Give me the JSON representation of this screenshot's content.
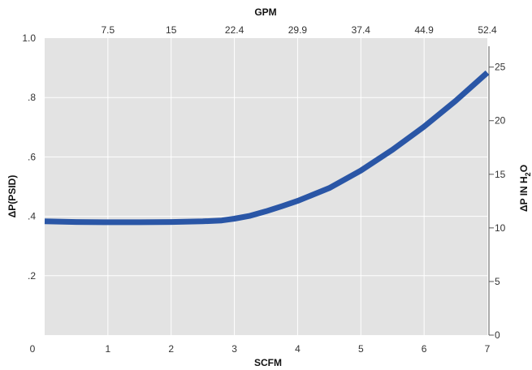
{
  "chart_data": {
    "type": "line",
    "x_axis": {
      "label": "SCFM",
      "range": [
        0,
        7
      ],
      "ticks": [
        "0",
        "1",
        "2",
        "3",
        "4",
        "5",
        "6",
        "7"
      ]
    },
    "top_axis": {
      "label": "GPM",
      "ticks": [
        "7.5",
        "15",
        "22.4",
        "29.9",
        "37.4",
        "44.9",
        "52.4"
      ]
    },
    "y_axis_left": {
      "label": "ΔP(PSID)",
      "range": [
        0,
        1.0
      ],
      "ticks": [
        "",
        ".2",
        ".4",
        ".6",
        ".8",
        "1.0"
      ]
    },
    "y_axis_right": {
      "label_main": "ΔP IN H",
      "label_sub": "2",
      "label_end": "O",
      "range": [
        0,
        27.7
      ],
      "ticks": [
        "0",
        "5",
        "10",
        "15",
        "20",
        "25"
      ]
    },
    "grid": true,
    "series": [
      {
        "color": "#2a56a6",
        "x": [
          0,
          0.5,
          1,
          1.5,
          2,
          2.5,
          2.8,
          3,
          3.25,
          3.5,
          3.75,
          4,
          4.5,
          5,
          5.5,
          6,
          6.5,
          7
        ],
        "y": [
          0.383,
          0.381,
          0.38,
          0.38,
          0.381,
          0.383,
          0.386,
          0.392,
          0.402,
          0.417,
          0.434,
          0.452,
          0.495,
          0.554,
          0.624,
          0.702,
          0.789,
          0.884
        ]
      }
    ],
    "colors": {
      "plot_background": "#e3e3e3",
      "grid": "#ffffff",
      "line": "#2a56a6"
    }
  }
}
